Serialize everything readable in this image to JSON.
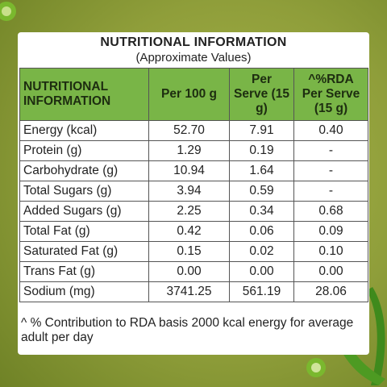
{
  "header": {
    "title": "NUTRITIONAL INFORMATION",
    "subtitle": "(Approximate Values)"
  },
  "table": {
    "columns": [
      "NUTRITIONAL INFORMATION",
      "Per 100 g",
      "Per Serve (15 g)",
      "^%RDA Per Serve (15 g)"
    ],
    "rows": [
      [
        "Energy (kcal)",
        "52.70",
        "7.91",
        "0.40"
      ],
      [
        "Protein (g)",
        "1.29",
        "0.19",
        "-"
      ],
      [
        "Carbohydrate (g)",
        "10.94",
        "1.64",
        "-"
      ],
      [
        "Total Sugars (g)",
        "3.94",
        "0.59",
        "-"
      ],
      [
        "Added Sugars (g)",
        "2.25",
        "0.34",
        "0.68"
      ],
      [
        "Total Fat (g)",
        "0.42",
        "0.06",
        "0.09"
      ],
      [
        "Saturated Fat (g)",
        "0.15",
        "0.02",
        "0.10"
      ],
      [
        "Trans Fat (g)",
        "0.00",
        "0.00",
        "0.00"
      ],
      [
        "Sodium (mg)",
        "3741.25",
        "561.19",
        "28.06"
      ]
    ]
  },
  "footnote": "^ % Contribution to RDA basis 2000 kcal energy for average adult per day"
}
